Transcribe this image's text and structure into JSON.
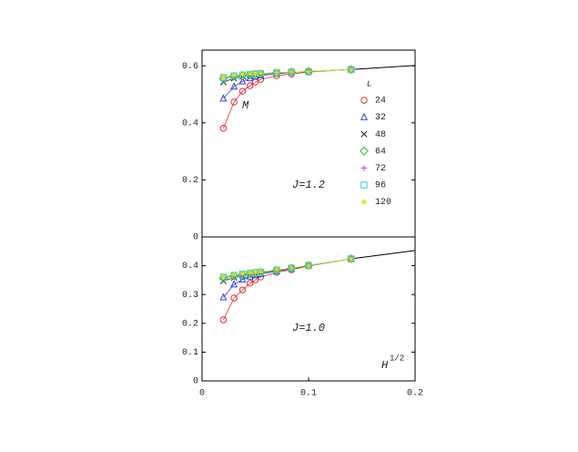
{
  "chart_data": [
    {
      "type": "line",
      "ylim": [
        0,
        0.655
      ],
      "yticks": [
        0,
        0.2,
        0.4,
        0.6
      ],
      "xlim": [
        0,
        0.2
      ],
      "annotations": [
        "M",
        "J=1.2"
      ],
      "legend_title": "L",
      "x": [
        0.02,
        0.03,
        0.038,
        0.045,
        0.05,
        0.055,
        0.07,
        0.084,
        0.1,
        0.14
      ],
      "series": [
        {
          "name": "24",
          "color": "#e03030",
          "marker": "circle",
          "values": [
            0.381,
            0.473,
            0.511,
            0.53,
            0.543,
            0.552,
            0.565,
            0.571,
            0.578,
            0.587
          ]
        },
        {
          "name": "32",
          "color": "#3040e0",
          "marker": "triangle",
          "values": [
            0.485,
            0.527,
            0.545,
            0.556,
            0.562,
            0.566,
            0.572,
            0.576,
            0.58,
            0.587
          ]
        },
        {
          "name": "48",
          "color": "#202020",
          "marker": "x",
          "values": [
            0.543,
            0.556,
            0.563,
            0.567,
            0.569,
            0.571,
            0.574,
            0.577,
            0.58,
            0.587
          ]
        },
        {
          "name": "64",
          "color": "#30c030",
          "marker": "diamond",
          "values": [
            0.555,
            0.563,
            0.566,
            0.568,
            0.57,
            0.572,
            0.575,
            0.578,
            0.58,
            0.587
          ]
        },
        {
          "name": "72",
          "color": "#e030e0",
          "marker": "plus",
          "values": [
            0.557,
            0.564,
            0.567,
            0.569,
            0.571,
            0.573,
            0.575,
            0.578,
            0.58,
            0.587
          ]
        },
        {
          "name": "96",
          "color": "#30d0e0",
          "marker": "square",
          "values": [
            0.559,
            0.565,
            0.568,
            0.57,
            0.572,
            0.573,
            0.576,
            0.578,
            0.58,
            0.587
          ]
        },
        {
          "name": "120",
          "color": "#e0e020",
          "marker": "star",
          "values": [
            0.56,
            0.566,
            0.569,
            0.571,
            0.572,
            0.574,
            0.576,
            0.578,
            0.58,
            0.587
          ]
        }
      ],
      "extension": {
        "x": [
          0.14,
          0.2
        ],
        "values": [
          0.587,
          0.601
        ]
      }
    },
    {
      "type": "line",
      "ylim": [
        0,
        0.5
      ],
      "yticks": [
        0,
        0.1,
        0.2,
        0.3,
        0.4
      ],
      "xlim": [
        0,
        0.2
      ],
      "xticks": [
        0,
        0.1,
        0.2
      ],
      "annotations": [
        "J=1.0"
      ],
      "xlabel": "H",
      "xlabel_sup": "1/2",
      "x": [
        0.02,
        0.03,
        0.038,
        0.045,
        0.05,
        0.055,
        0.07,
        0.084,
        0.1,
        0.14
      ],
      "series": [
        {
          "name": "24",
          "color": "#e03030",
          "marker": "circle",
          "values": [
            0.212,
            0.288,
            0.316,
            0.339,
            0.351,
            0.361,
            0.377,
            0.386,
            0.399,
            0.424
          ]
        },
        {
          "name": "32",
          "color": "#3040e0",
          "marker": "triangle",
          "values": [
            0.29,
            0.335,
            0.352,
            0.362,
            0.367,
            0.371,
            0.381,
            0.389,
            0.4,
            0.424
          ]
        },
        {
          "name": "48",
          "color": "#202020",
          "marker": "x",
          "values": [
            0.347,
            0.359,
            0.366,
            0.37,
            0.373,
            0.376,
            0.383,
            0.39,
            0.401,
            0.424
          ]
        },
        {
          "name": "64",
          "color": "#30c030",
          "marker": "diamond",
          "values": [
            0.357,
            0.364,
            0.369,
            0.372,
            0.375,
            0.377,
            0.384,
            0.391,
            0.401,
            0.424
          ]
        },
        {
          "name": "72",
          "color": "#e030e0",
          "marker": "plus",
          "values": [
            0.359,
            0.366,
            0.37,
            0.373,
            0.376,
            0.378,
            0.385,
            0.391,
            0.401,
            0.424
          ]
        },
        {
          "name": "96",
          "color": "#30d0e0",
          "marker": "square",
          "values": [
            0.361,
            0.367,
            0.371,
            0.374,
            0.376,
            0.378,
            0.385,
            0.392,
            0.401,
            0.424
          ]
        },
        {
          "name": "120",
          "color": "#e0e020",
          "marker": "star",
          "values": [
            0.362,
            0.368,
            0.372,
            0.375,
            0.377,
            0.379,
            0.386,
            0.392,
            0.401,
            0.424
          ]
        }
      ],
      "extension": {
        "x": [
          0.14,
          0.2
        ],
        "values": [
          0.424,
          0.453
        ]
      }
    }
  ]
}
